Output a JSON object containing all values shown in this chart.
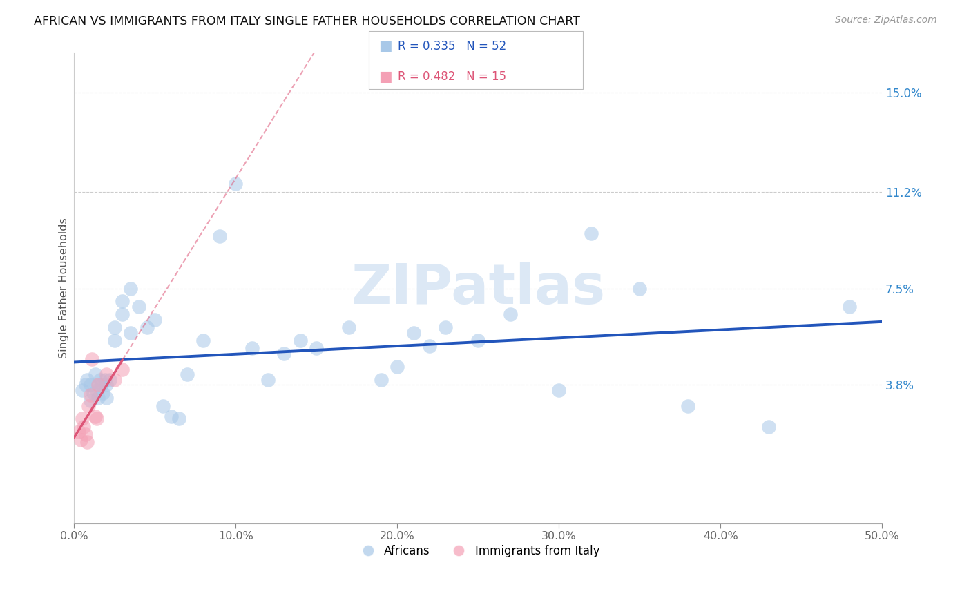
{
  "title": "AFRICAN VS IMMIGRANTS FROM ITALY SINGLE FATHER HOUSEHOLDS CORRELATION CHART",
  "source": "Source: ZipAtlas.com",
  "ylabel": "Single Father Households",
  "xlim": [
    0.0,
    0.5
  ],
  "ylim": [
    -0.015,
    0.165
  ],
  "xticks": [
    0.0,
    0.1,
    0.2,
    0.3,
    0.4,
    0.5
  ],
  "xticklabels": [
    "0.0%",
    "10.0%",
    "20.0%",
    "30.0%",
    "40.0%",
    "50.0%"
  ],
  "ytick_positions": [
    0.038,
    0.075,
    0.112,
    0.15
  ],
  "ytick_labels": [
    "3.8%",
    "7.5%",
    "11.2%",
    "15.0%"
  ],
  "legend1_label": "Africans",
  "legend2_label": "Immigrants from Italy",
  "R1": 0.335,
  "N1": 52,
  "R2": 0.482,
  "N2": 15,
  "color_blue": "#a8c8e8",
  "color_pink": "#f4a0b5",
  "line_blue": "#2255bb",
  "line_pink": "#dd5577",
  "background": "#ffffff",
  "grid_color": "#cccccc",
  "watermark_color": "#dce8f5",
  "title_color": "#111111",
  "axis_label_color": "#555555",
  "source_color": "#999999",
  "right_tick_color": "#3388cc",
  "africans_x": [
    0.005,
    0.007,
    0.008,
    0.01,
    0.01,
    0.012,
    0.013,
    0.014,
    0.015,
    0.015,
    0.016,
    0.017,
    0.018,
    0.019,
    0.02,
    0.02,
    0.022,
    0.025,
    0.025,
    0.03,
    0.03,
    0.035,
    0.035,
    0.04,
    0.045,
    0.05,
    0.055,
    0.06,
    0.065,
    0.07,
    0.08,
    0.09,
    0.1,
    0.11,
    0.12,
    0.13,
    0.14,
    0.15,
    0.17,
    0.19,
    0.2,
    0.21,
    0.22,
    0.23,
    0.25,
    0.27,
    0.3,
    0.32,
    0.35,
    0.38,
    0.43,
    0.48
  ],
  "africans_y": [
    0.036,
    0.038,
    0.04,
    0.032,
    0.038,
    0.035,
    0.042,
    0.036,
    0.033,
    0.038,
    0.04,
    0.038,
    0.035,
    0.04,
    0.033,
    0.038,
    0.04,
    0.055,
    0.06,
    0.065,
    0.07,
    0.075,
    0.058,
    0.068,
    0.06,
    0.063,
    0.03,
    0.026,
    0.025,
    0.042,
    0.055,
    0.095,
    0.115,
    0.052,
    0.04,
    0.05,
    0.055,
    0.052,
    0.06,
    0.04,
    0.045,
    0.058,
    0.053,
    0.06,
    0.055,
    0.065,
    0.036,
    0.096,
    0.075,
    0.03,
    0.022,
    0.068
  ],
  "italy_x": [
    0.003,
    0.004,
    0.005,
    0.006,
    0.007,
    0.008,
    0.009,
    0.01,
    0.011,
    0.013,
    0.014,
    0.015,
    0.02,
    0.025,
    0.03
  ],
  "italy_y": [
    0.02,
    0.017,
    0.025,
    0.022,
    0.019,
    0.016,
    0.03,
    0.034,
    0.048,
    0.026,
    0.025,
    0.038,
    0.042,
    0.04,
    0.044
  ]
}
